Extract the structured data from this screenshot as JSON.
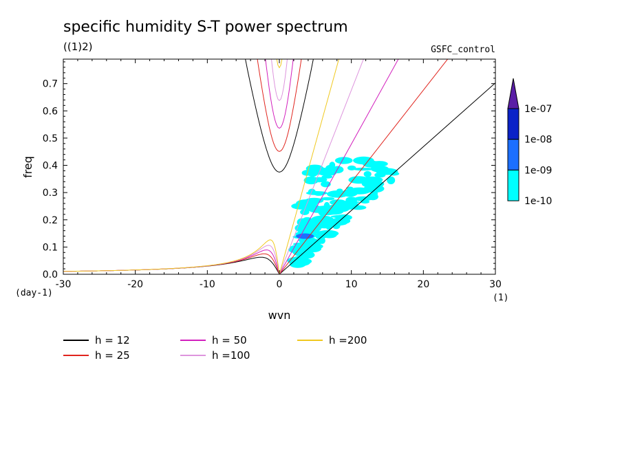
{
  "chart_data": {
    "type": "line",
    "title": "specific humidity S-T power spectrum",
    "subtitle": "((1)2)",
    "run_label": "GSFC_control",
    "xlabel": "wvn",
    "ylabel": "freq",
    "x_unit": "(1)",
    "y_unit": "(day-1)",
    "xlim": [
      -30,
      30
    ],
    "ylim": [
      0,
      0.79
    ],
    "x_ticks": [
      -30,
      -20,
      -10,
      0,
      10,
      20,
      30
    ],
    "x_tick_labels": [
      "-30",
      "-20",
      "-10",
      "0",
      "10",
      "20",
      "30"
    ],
    "y_ticks": [
      0,
      0.1,
      0.2,
      0.3,
      0.4,
      0.5,
      0.6,
      0.7
    ],
    "y_tick_labels": [
      "0.0",
      "0.1",
      "0.2",
      "0.3",
      "0.4",
      "0.5",
      "0.6",
      "0.7"
    ],
    "grid": false,
    "legend_position": "bottom",
    "series": [
      {
        "name": "h = 12",
        "equivalent_depth": 12,
        "color": "#000000"
      },
      {
        "name": "h = 25",
        "equivalent_depth": 25,
        "color": "#e0231c"
      },
      {
        "name": "h = 50",
        "equivalent_depth": 50,
        "color": "#d21fbd"
      },
      {
        "name": "h =100",
        "equivalent_depth": 100,
        "color": "#dd94dd"
      },
      {
        "name": "h =200",
        "equivalent_depth": 200,
        "color": "#f0c81e"
      }
    ],
    "curve_families": [
      "kelvin",
      "inertia-gravity n=1",
      "equatorial rossby n=1"
    ],
    "shading": {
      "type": "contour-fill",
      "colorbar_labels": [
        "1e-10",
        "1e-09",
        "1e-08",
        "1e-07"
      ],
      "colors": [
        "#00ffff",
        "#1c6fff",
        "#0a22c8",
        "#5a1ea6"
      ],
      "regions": [
        {
          "level": "1e-10",
          "wvn_range": [
            2.5,
            16.5
          ],
          "freq_range": [
            0.03,
            0.42
          ]
        },
        {
          "level": "1e-09",
          "wvn_range": [
            2.3,
            4.8
          ],
          "freq_range": [
            0.135,
            0.145
          ]
        }
      ]
    }
  }
}
